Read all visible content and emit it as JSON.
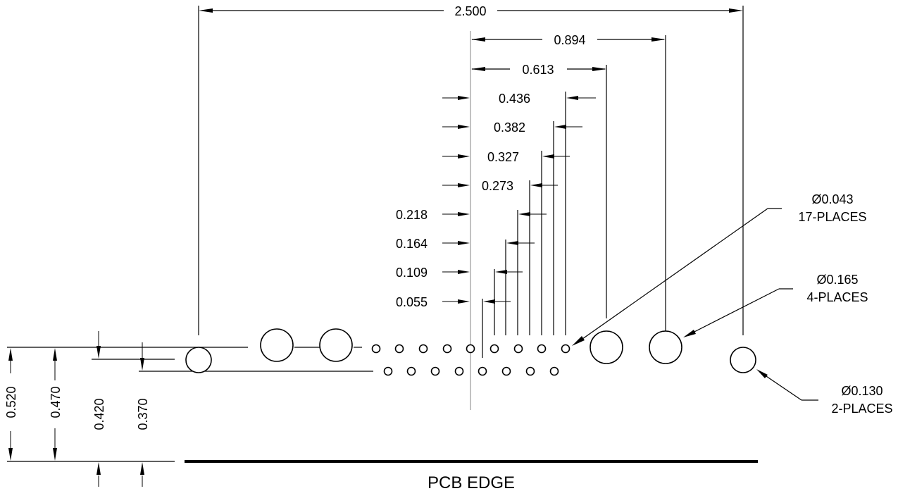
{
  "dimensions": {
    "overall_width": "2.500",
    "large_hole_outer": "0.894",
    "large_hole_inner": "0.613",
    "offsets": [
      "0.436",
      "0.382",
      "0.327",
      "0.273",
      "0.218",
      "0.164",
      "0.109",
      "0.055"
    ],
    "vertical": [
      "0.520",
      "0.470",
      "0.420",
      "0.370"
    ]
  },
  "notes": {
    "small_holes": {
      "diameter": "Ø0.043",
      "count": "17-PLACES"
    },
    "large_holes": {
      "diameter": "Ø0.165",
      "count": "4-PLACES"
    },
    "mount_holes": {
      "diameter": "Ø0.130",
      "count": "2-PLACES"
    }
  },
  "pcb_edge_label": "PCB EDGE"
}
